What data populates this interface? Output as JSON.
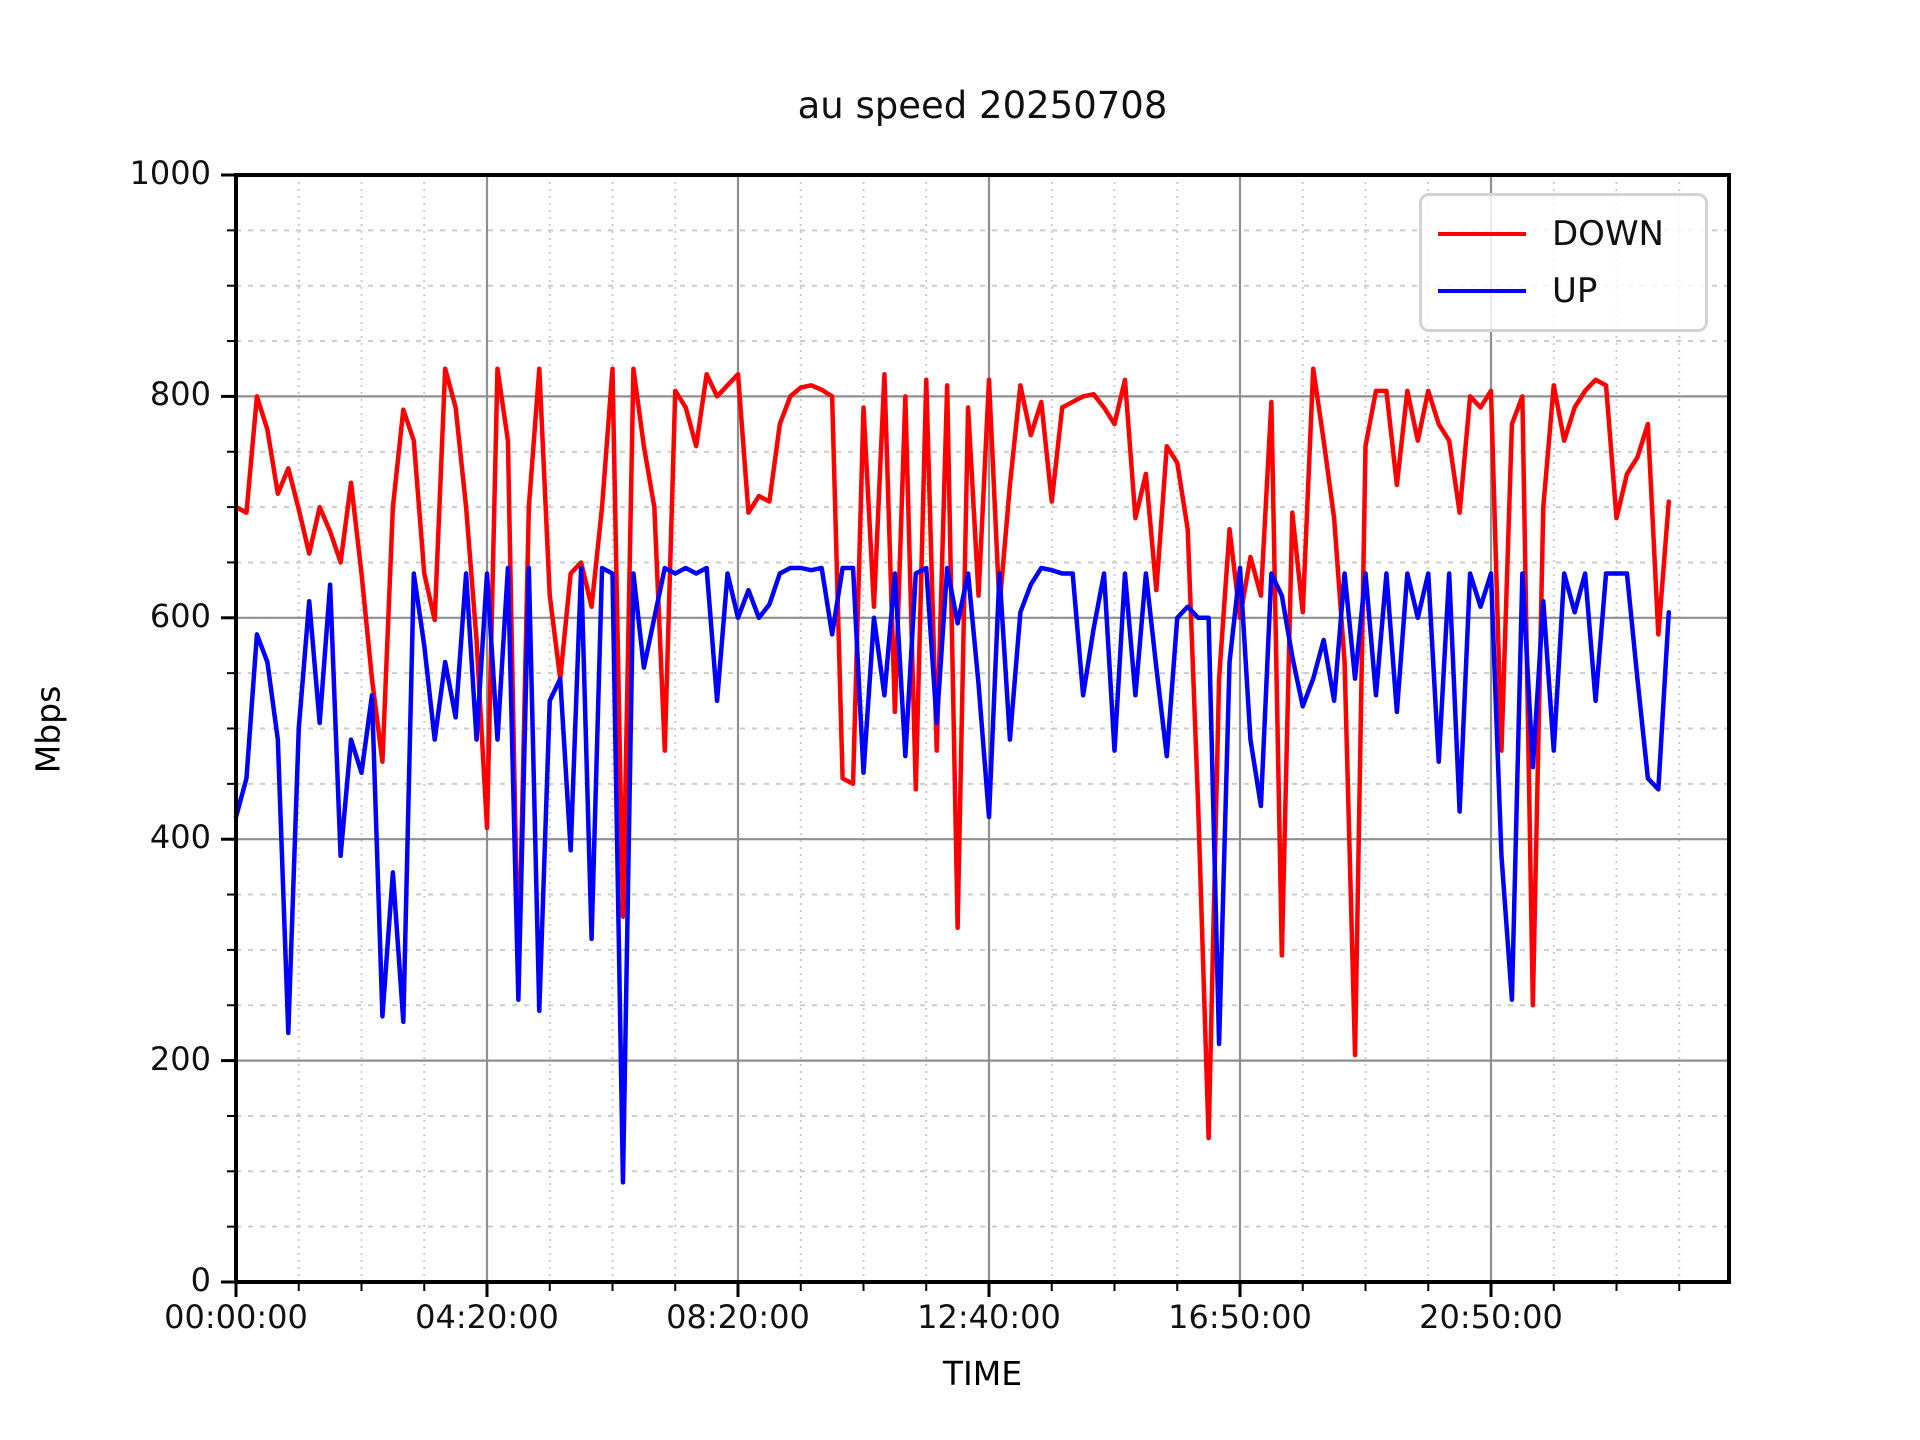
{
  "title": "au speed 20250708",
  "chart_data": {
    "type": "line",
    "title": "au speed 20250708",
    "xlabel": "TIME",
    "ylabel": "Mbps",
    "ylim": [
      0,
      1000
    ],
    "y_tick_labels": [
      "0",
      "200",
      "400",
      "600",
      "800",
      "1000"
    ],
    "y_major_step": 200,
    "y_minor_step": 50,
    "x_tick_labels": [
      "00:00:00",
      "04:20:00",
      "08:20:00",
      "12:40:00",
      "16:50:00",
      "20:50:00"
    ],
    "x_ticks_every_n_points": 24,
    "x_minor_per_major": 4,
    "grid": true,
    "legend_position": "upper right",
    "series": [
      {
        "name": "DOWN",
        "color": "#ff0000",
        "values": [
          700,
          695,
          800,
          770,
          712,
          735,
          698,
          658,
          700,
          678,
          650,
          722,
          640,
          545,
          470,
          700,
          788,
          760,
          640,
          598,
          825,
          790,
          700,
          580,
          410,
          825,
          760,
          270,
          700,
          825,
          620,
          545,
          640,
          650,
          610,
          700,
          825,
          330,
          825,
          755,
          700,
          480,
          805,
          790,
          755,
          820,
          800,
          810,
          820,
          695,
          710,
          705,
          775,
          800,
          808,
          810,
          806,
          800,
          455,
          450,
          790,
          610,
          820,
          515,
          800,
          445,
          815,
          480,
          810,
          320,
          790,
          620,
          815,
          610,
          720,
          810,
          765,
          795,
          705,
          790,
          795,
          800,
          802,
          790,
          775,
          815,
          690,
          730,
          625,
          755,
          740,
          680,
          430,
          130,
          545,
          680,
          600,
          655,
          620,
          795,
          295,
          695,
          605,
          825,
          760,
          690,
          560,
          205,
          755,
          805,
          805,
          720,
          805,
          760,
          805,
          775,
          760,
          695,
          800,
          790,
          805,
          480,
          775,
          800,
          250,
          700,
          810,
          760,
          790,
          805,
          815,
          810,
          690,
          730,
          745,
          775,
          585,
          705
        ]
      },
      {
        "name": "UP",
        "color": "#0000ff",
        "values": [
          420,
          455,
          585,
          560,
          490,
          225,
          500,
          615,
          505,
          630,
          385,
          490,
          460,
          530,
          240,
          370,
          235,
          640,
          575,
          490,
          560,
          510,
          640,
          490,
          640,
          490,
          645,
          255,
          645,
          245,
          525,
          545,
          390,
          645,
          310,
          645,
          640,
          90,
          640,
          555,
          600,
          645,
          640,
          645,
          640,
          645,
          525,
          640,
          600,
          625,
          600,
          612,
          640,
          645,
          645,
          643,
          645,
          585,
          645,
          645,
          460,
          600,
          530,
          640,
          475,
          640,
          645,
          505,
          645,
          595,
          640,
          540,
          420,
          640,
          490,
          605,
          630,
          645,
          643,
          640,
          640,
          530,
          590,
          640,
          480,
          640,
          530,
          640,
          555,
          475,
          600,
          610,
          600,
          600,
          215,
          560,
          645,
          490,
          430,
          640,
          620,
          565,
          520,
          545,
          580,
          525,
          640,
          545,
          640,
          530,
          640,
          515,
          640,
          600,
          640,
          470,
          640,
          425,
          640,
          610,
          640,
          385,
          255,
          640,
          465,
          615,
          480,
          640,
          605,
          640,
          525,
          640,
          640,
          640,
          545,
          455,
          445,
          605
        ]
      }
    ]
  },
  "legend": {
    "entries": [
      {
        "label": "DOWN",
        "color": "#ff0000"
      },
      {
        "label": "UP",
        "color": "#0000ff"
      }
    ]
  },
  "colors": {
    "major_grid": "#8f8f8f",
    "minor_grid": "#cccccc",
    "spine": "#000000"
  }
}
